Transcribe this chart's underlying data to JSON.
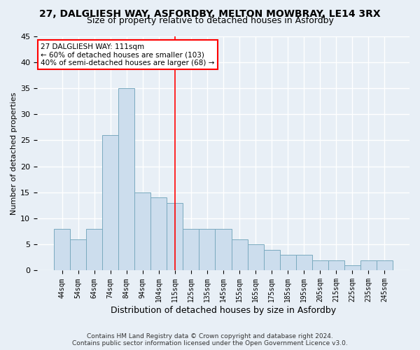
{
  "title1": "27, DALGLIESH WAY, ASFORDBY, MELTON MOWBRAY, LE14 3RX",
  "title2": "Size of property relative to detached houses in Asfordby",
  "xlabel": "Distribution of detached houses by size in Asfordby",
  "ylabel": "Number of detached properties",
  "categories": [
    "44sqm",
    "54sqm",
    "64sqm",
    "74sqm",
    "84sqm",
    "94sqm",
    "104sqm",
    "115sqm",
    "125sqm",
    "135sqm",
    "145sqm",
    "155sqm",
    "165sqm",
    "175sqm",
    "185sqm",
    "195sqm",
    "205sqm",
    "215sqm",
    "225sqm",
    "235sqm",
    "245sqm"
  ],
  "values": [
    8,
    6,
    8,
    26,
    35,
    15,
    14,
    13,
    8,
    8,
    8,
    6,
    5,
    4,
    3,
    3,
    2,
    2,
    1,
    2,
    2
  ],
  "bar_color": "#ccdded",
  "bar_edge_color": "#7aaabf",
  "red_line_x": 7.0,
  "annotation_line1": "27 DALGLIESH WAY: 111sqm",
  "annotation_line2": "← 60% of detached houses are smaller (103)",
  "annotation_line3": "40% of semi-detached houses are larger (68) →",
  "ylim": [
    0,
    45
  ],
  "yticks": [
    0,
    5,
    10,
    15,
    20,
    25,
    30,
    35,
    40,
    45
  ],
  "footer1": "Contains HM Land Registry data © Crown copyright and database right 2024.",
  "footer2": "Contains public sector information licensed under the Open Government Licence v3.0.",
  "bg_color": "#e8eff6",
  "plot_bg_color": "#e8eff6",
  "grid_color": "#ffffff",
  "title1_fontsize": 10,
  "title2_fontsize": 9,
  "xlabel_fontsize": 9,
  "ylabel_fontsize": 8,
  "annot_fontsize": 7.5,
  "footer_fontsize": 6.5
}
